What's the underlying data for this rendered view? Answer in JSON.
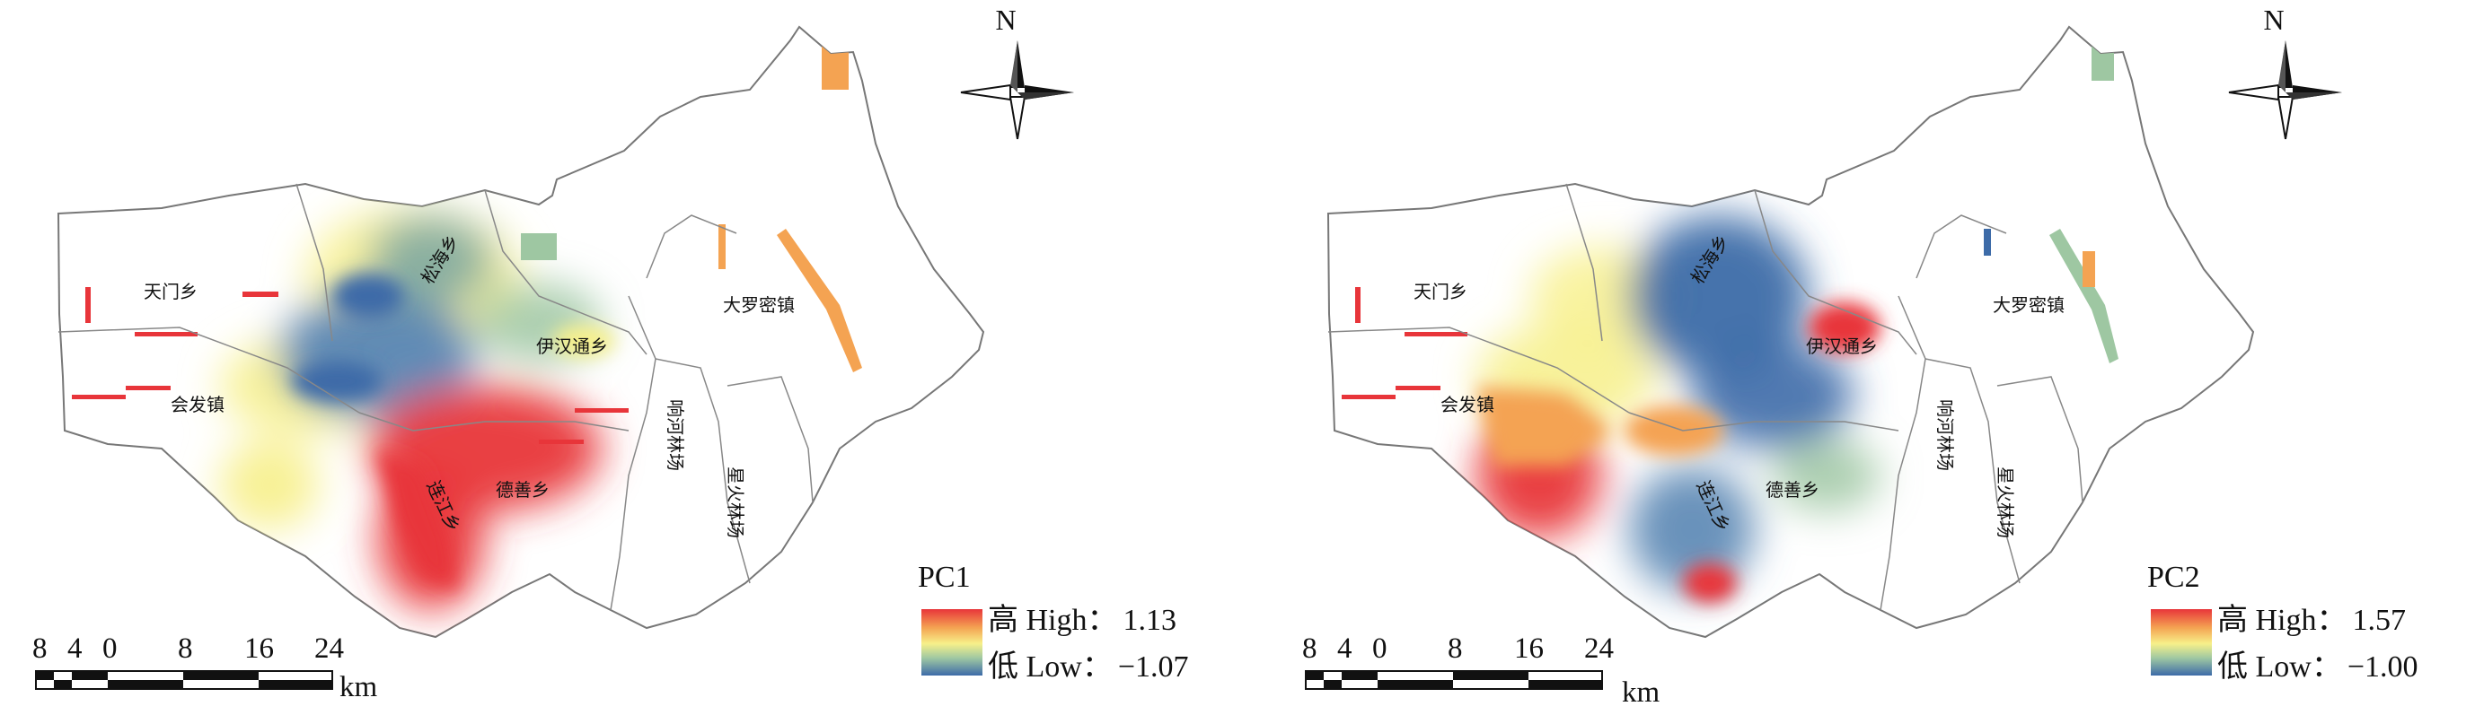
{
  "maps": [
    {
      "legend": {
        "title": "PC1",
        "high_label": "高 High：",
        "high_value": "1.13",
        "low_label": "低 Low：",
        "low_value": "−1.07"
      }
    },
    {
      "legend": {
        "title": "PC2",
        "high_label": "高 High：",
        "high_value": "1.57",
        "low_label": "低 Low：",
        "low_value": "−1.00"
      }
    }
  ],
  "places": {
    "tianmen": "天门乡",
    "huifa": "会发镇",
    "songhai": "松海乡",
    "yihantong": "伊汉通乡",
    "daluomi": "大罗密镇",
    "deshan": "德善乡",
    "hehe": "响河林场",
    "xinghuo": "星火林场",
    "lianhe": "连江乡"
  },
  "north_label": "N",
  "scale": {
    "ticks": [
      "8",
      "4",
      "0",
      "8",
      "16",
      "24"
    ],
    "unit": "km"
  },
  "colors": {
    "high": "#e8353a",
    "mid": "#f7f08a",
    "low": "#3d6ba8"
  }
}
